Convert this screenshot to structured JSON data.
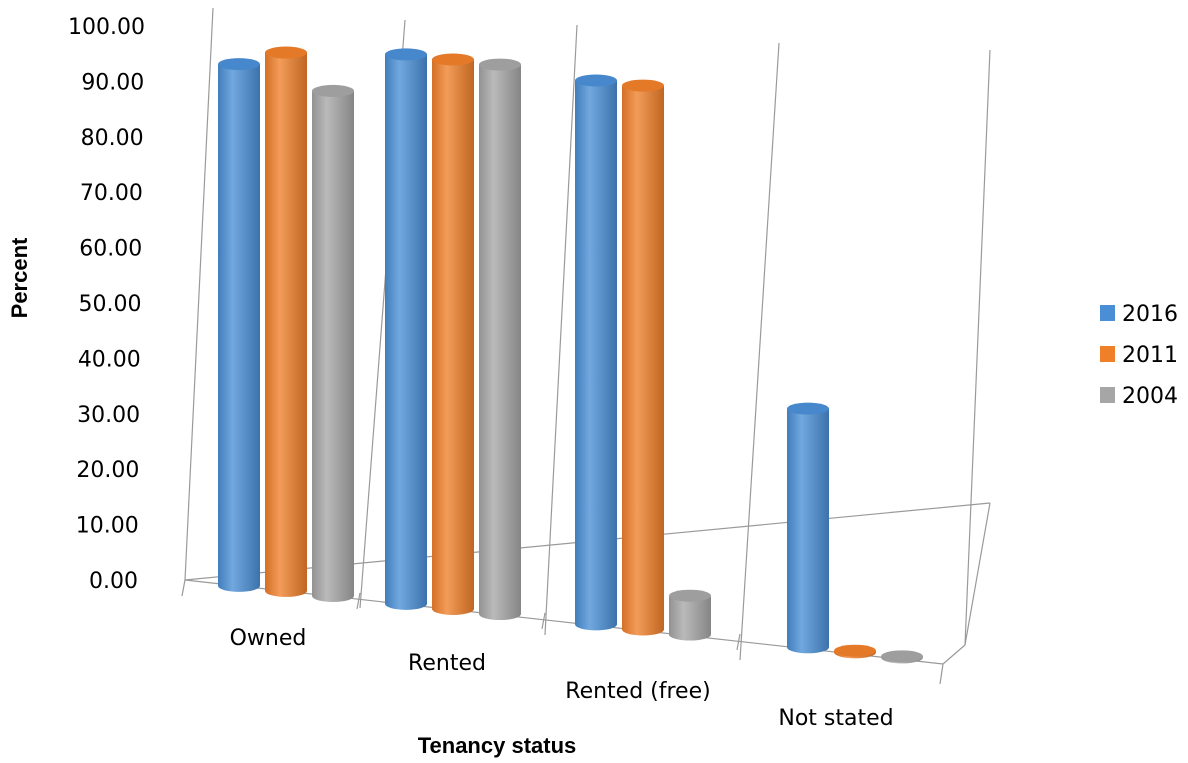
{
  "chart_data": {
    "type": "bar",
    "style": "3d-cylinder",
    "categories": [
      "Owned",
      "Rented",
      "Rented (free)",
      "Not stated"
    ],
    "series": [
      {
        "name": "2016",
        "values": [
          94,
          99,
          98,
          43
        ],
        "color": "#4a8fd6"
      },
      {
        "name": "2011",
        "values": [
          97,
          99,
          98,
          0.3
        ],
        "color": "#f07f2a"
      },
      {
        "name": "2004",
        "values": [
          91,
          99,
          7,
          0.2
        ],
        "color": "#a6a6a6"
      }
    ],
    "yticks": [
      "0.00",
      "10.00",
      "20.00",
      "30.00",
      "40.00",
      "50.00",
      "60.00",
      "70.00",
      "80.00",
      "90.00",
      "100.00"
    ],
    "ylim": [
      0,
      100
    ],
    "xlabel": "Tenancy status",
    "ylabel": "Percent",
    "legend_position": "right",
    "grid": false
  }
}
